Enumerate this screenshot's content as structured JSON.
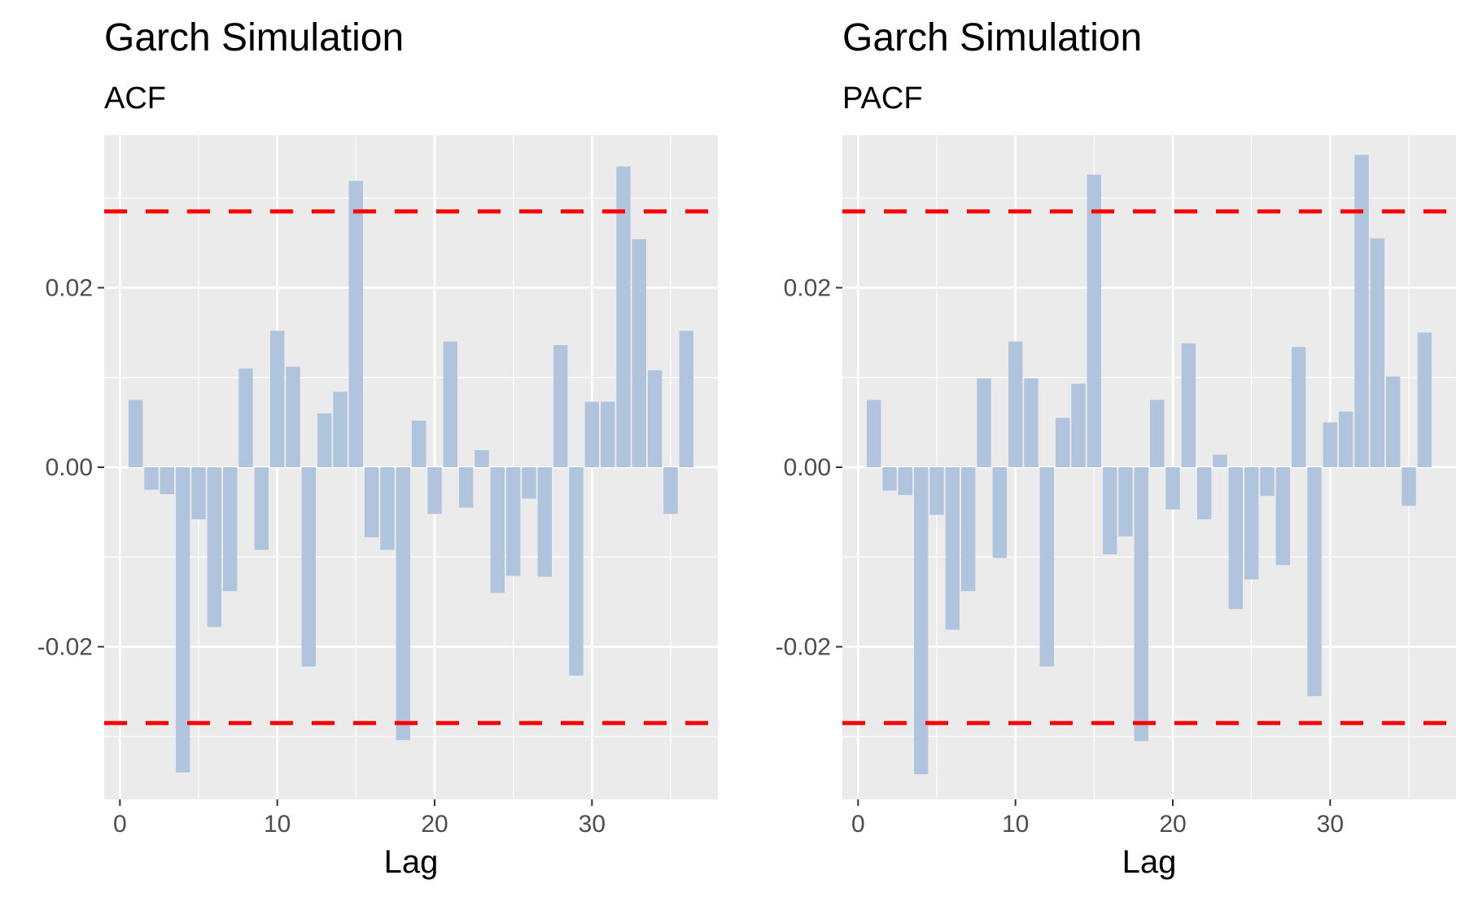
{
  "chart_data": [
    {
      "type": "bar",
      "title": "Garch Simulation",
      "subtitle": "ACF",
      "xlabel": "Lag",
      "ylabel": "",
      "xlim": [
        -1,
        38
      ],
      "ylim": [
        -0.037,
        0.037
      ],
      "x_ticks": [
        0,
        10,
        20,
        30
      ],
      "x_tick_labels": [
        "0",
        "10",
        "20",
        "30"
      ],
      "y_ticks": [
        -0.02,
        0.0,
        0.02
      ],
      "y_tick_labels": [
        "-0.02",
        "0.00",
        "0.02"
      ],
      "grid": true,
      "bar_color": "#b0c4de",
      "threshold_color": "#ff0000",
      "thresholds": [
        0.0285,
        -0.0285
      ],
      "lags": [
        1,
        2,
        3,
        4,
        5,
        6,
        7,
        8,
        9,
        10,
        11,
        12,
        13,
        14,
        15,
        16,
        17,
        18,
        19,
        20,
        21,
        22,
        23,
        24,
        25,
        26,
        27,
        28,
        29,
        30,
        31,
        32,
        33,
        34,
        35,
        36
      ],
      "values": [
        0.0075,
        -0.0025,
        -0.003,
        -0.034,
        -0.0058,
        -0.0178,
        -0.0138,
        0.011,
        -0.0092,
        0.0152,
        0.0112,
        -0.0222,
        0.006,
        0.0084,
        0.0319,
        -0.0078,
        -0.0092,
        -0.0304,
        0.0052,
        -0.0052,
        0.014,
        -0.0045,
        0.0019,
        -0.014,
        -0.0121,
        -0.0035,
        -0.0122,
        0.0136,
        -0.0232,
        0.0073,
        0.0073,
        0.0335,
        0.0254,
        0.0108,
        -0.0052,
        0.0152
      ]
    },
    {
      "type": "bar",
      "title": "Garch Simulation",
      "subtitle": "PACF",
      "xlabel": "Lag",
      "ylabel": "",
      "xlim": [
        -1,
        38
      ],
      "ylim": [
        -0.037,
        0.037
      ],
      "x_ticks": [
        0,
        10,
        20,
        30
      ],
      "x_tick_labels": [
        "0",
        "10",
        "20",
        "30"
      ],
      "y_ticks": [
        -0.02,
        0.0,
        0.02
      ],
      "y_tick_labels": [
        "-0.02",
        "0.00",
        "0.02"
      ],
      "grid": true,
      "bar_color": "#b0c4de",
      "threshold_color": "#ff0000",
      "thresholds": [
        0.0285,
        -0.0285
      ],
      "lags": [
        1,
        2,
        3,
        4,
        5,
        6,
        7,
        8,
        9,
        10,
        11,
        12,
        13,
        14,
        15,
        16,
        17,
        18,
        19,
        20,
        21,
        22,
        23,
        24,
        25,
        26,
        27,
        28,
        29,
        30,
        31,
        32,
        33,
        34,
        35,
        36
      ],
      "values": [
        0.0075,
        -0.0026,
        -0.0031,
        -0.0342,
        -0.0053,
        -0.0181,
        -0.0138,
        0.0099,
        -0.0101,
        0.014,
        0.0099,
        -0.0222,
        0.0055,
        0.0093,
        0.0326,
        -0.0097,
        -0.0077,
        -0.0305,
        0.0075,
        -0.0047,
        0.0138,
        -0.0058,
        0.0014,
        -0.0158,
        -0.0125,
        -0.0032,
        -0.0109,
        0.0134,
        -0.0255,
        0.005,
        0.0062,
        0.0348,
        0.0255,
        0.0101,
        -0.0043,
        0.015
      ]
    }
  ]
}
